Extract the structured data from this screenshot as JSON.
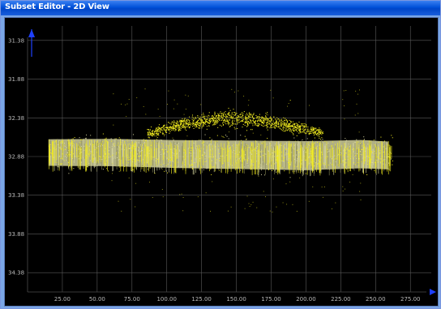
{
  "window": {
    "title": "Subset Editor - 2D View"
  },
  "colors": {
    "background": "#000000",
    "grid": "#5a5a5a",
    "axis_arrow": "#1e40ff",
    "main_band": "#d8d7a0",
    "scatter": "#f4ee20",
    "title_bar": "#0050d8"
  },
  "icons": {
    "y_axis_arrow": "arrow-up-icon",
    "x_axis_arrow": "arrow-right-icon"
  },
  "chart_data": {
    "type": "scatter",
    "x_ticks": [
      "25.00",
      "50.00",
      "75.00",
      "100.00",
      "125.00",
      "150.00",
      "175.00",
      "200.00",
      "225.00",
      "250.00",
      "275.00"
    ],
    "y_ticks": [
      "31.38",
      "31.88",
      "32.38",
      "32.88",
      "33.38",
      "33.88",
      "34.38"
    ],
    "xlim": [
      0,
      290
    ],
    "ylim": [
      31.13,
      34.63
    ],
    "y_inverted": true,
    "grid": true,
    "series": [
      {
        "kind": "band",
        "color": "#d8d7a0",
        "x_range": [
          15,
          262
        ],
        "center": [
          [
            15,
            32.82
          ],
          [
            60,
            32.82
          ],
          [
            110,
            32.84
          ],
          [
            160,
            32.85
          ],
          [
            200,
            32.86
          ],
          [
            240,
            32.84
          ],
          [
            262,
            32.86
          ]
        ],
        "spread": [
          [
            15,
            0.43
          ],
          [
            100,
            0.45
          ],
          [
            200,
            0.47
          ],
          [
            262,
            0.45
          ]
        ],
        "density": "high"
      },
      {
        "kind": "arc",
        "color": "#f4ee20",
        "x_range": [
          86,
          212
        ],
        "center": [
          [
            86,
            32.58
          ],
          [
            110,
            32.46
          ],
          [
            140,
            32.38
          ],
          [
            170,
            32.42
          ],
          [
            200,
            32.52
          ],
          [
            212,
            32.58
          ]
        ],
        "spread": [
          [
            86,
            0.08
          ],
          [
            140,
            0.16
          ],
          [
            212,
            0.1
          ]
        ],
        "density": "medium"
      }
    ]
  }
}
